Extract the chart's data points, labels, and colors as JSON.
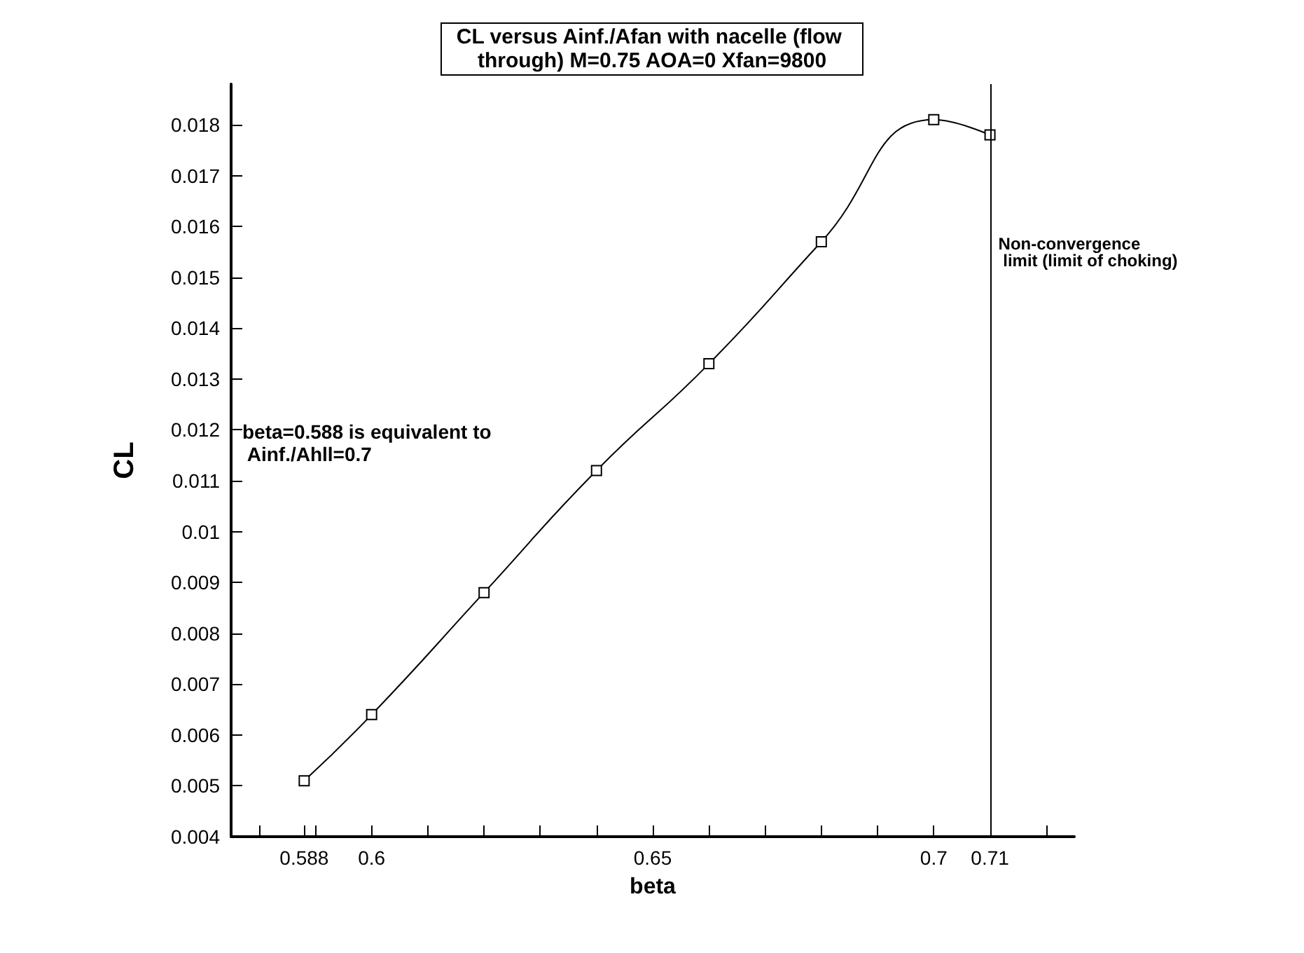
{
  "chart_data": {
    "type": "line",
    "title": "CL versus Ainf./Afan with nacelle (flow through) M=0.75 AOA=0 Xfan=9800",
    "xlabel": "beta",
    "ylabel": "CL",
    "x": [
      0.588,
      0.6,
      0.62,
      0.64,
      0.66,
      0.68,
      0.7,
      0.71
    ],
    "series": [
      {
        "color": "#000000",
        "values": [
          0.0051,
          0.0064,
          0.0088,
          0.0112,
          0.0133,
          0.0157,
          0.0181,
          0.0178
        ]
      }
    ],
    "xlim": [
      0.575,
      0.725
    ],
    "xticks": [
      {
        "value": 0.58,
        "label": null
      },
      0.588,
      {
        "value": 0.59,
        "label": null
      },
      0.6,
      {
        "value": 0.61,
        "label": null
      },
      {
        "value": 0.62,
        "label": null
      },
      {
        "value": 0.63,
        "label": null
      },
      {
        "value": 0.64,
        "label": null
      },
      0.65,
      {
        "value": 0.66,
        "label": null
      },
      {
        "value": 0.67,
        "label": null
      },
      {
        "value": 0.68,
        "label": null
      },
      {
        "value": 0.69,
        "label": null
      },
      0.7,
      0.71,
      {
        "value": 0.72,
        "label": null
      }
    ],
    "ylim": [
      0.004,
      0.0188
    ],
    "yticks": [
      0.004,
      0.005,
      0.006,
      0.007,
      0.008,
      0.009,
      0.01,
      0.011,
      0.012,
      0.013,
      0.014,
      0.015,
      0.016,
      0.017,
      0.018
    ],
    "ref_lines": [
      {
        "axis": "x",
        "value": 0.71,
        "label": "Non-convergence\n limit (limit of choking)",
        "color": "#000000"
      }
    ],
    "annotations": [
      "beta=0.588 is equivalent to\n Ainf./Ahll=0.7"
    ],
    "grid": false,
    "marker": "square",
    "line_style": "solid"
  }
}
